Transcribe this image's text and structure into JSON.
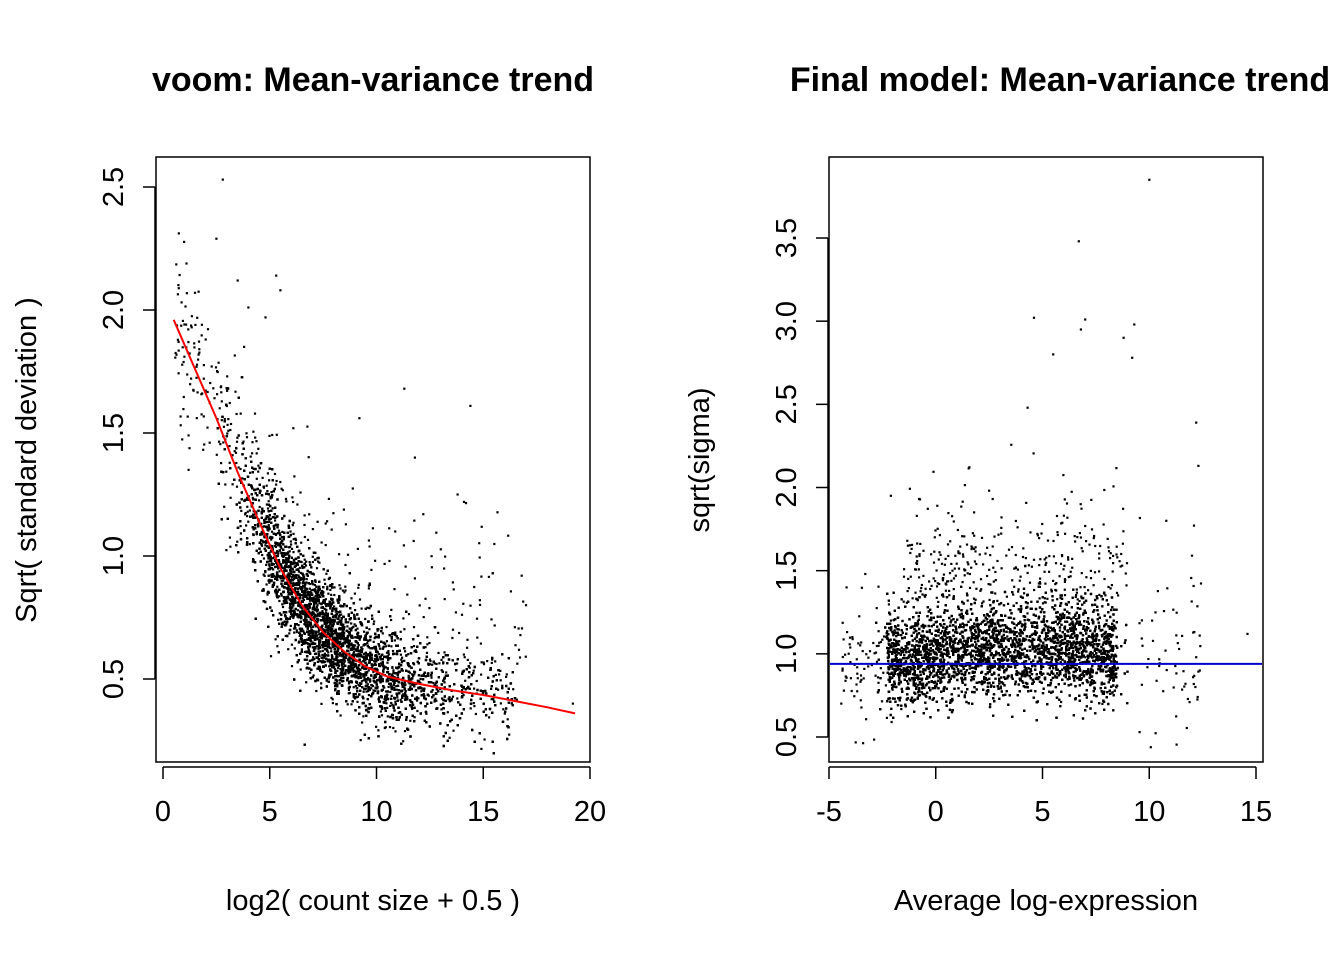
{
  "chart_data": [
    {
      "type": "scatter",
      "title": "voom: Mean-variance trend",
      "xlabel": "log2( count size + 0.5 )",
      "ylabel": "Sqrt( standard deviation )",
      "xlim": [
        0,
        20
      ],
      "ylim": [
        0.25,
        2.6
      ],
      "xticks": [
        "0",
        "5",
        "10",
        "15",
        "20"
      ],
      "yticks": [
        "0.5",
        "1.0",
        "1.5",
        "2.0",
        "2.5"
      ],
      "grid": false,
      "point_color": "#000000",
      "trend_color": "#ff0000",
      "trend_line": {
        "x": [
          0.5,
          1.5,
          2.5,
          3.5,
          4.5,
          5.5,
          6.5,
          7.5,
          8.5,
          9.5,
          10.5,
          12,
          13.5,
          15,
          16.5,
          18,
          19.3
        ],
        "y": [
          1.96,
          1.76,
          1.56,
          1.34,
          1.14,
          0.95,
          0.8,
          0.69,
          0.61,
          0.55,
          0.51,
          0.48,
          0.455,
          0.435,
          0.41,
          0.385,
          0.36
        ]
      },
      "outliers": {
        "x": [
          2.8,
          2.5,
          3.5,
          5.3,
          5.5,
          4.8,
          1.5,
          1.0,
          2.0,
          11.3,
          14.4,
          13.8,
          14.1,
          11.8,
          17.0,
          16.8,
          19.2,
          1.2,
          9.2,
          4.0,
          3.8
        ],
        "y": [
          2.53,
          2.29,
          2.12,
          2.14,
          2.08,
          1.97,
          2.07,
          1.81,
          1.88,
          1.68,
          1.61,
          1.25,
          1.22,
          1.4,
          0.8,
          0.92,
          0.4,
          1.35,
          1.56,
          2.01,
          1.85
        ]
      }
    },
    {
      "type": "scatter",
      "title": "Final model: Mean-variance trend",
      "xlabel": "Average log-expression",
      "ylabel": "sqrt(sigma)",
      "xlim": [
        -5,
        15
      ],
      "ylim": [
        0.35,
        3.95
      ],
      "xticks": [
        "-5",
        "0",
        "5",
        "10",
        "15"
      ],
      "yticks": [
        "0.5",
        "1.0",
        "1.5",
        "2.0",
        "2.5",
        "3.0",
        "3.5"
      ],
      "grid": false,
      "point_color": "#000000",
      "hline_color": "#0000cc",
      "hline_y": 0.94,
      "outliers": {
        "x": [
          10.0,
          6.7,
          6.8,
          7.0,
          9.3,
          8.8,
          9.2,
          4.6,
          5.5,
          4.3,
          12.2,
          12.3,
          14.6,
          12.0,
          11.7,
          -3.3,
          -4.0,
          -2.1,
          10.8,
          12.2
        ],
        "y": [
          3.85,
          3.48,
          2.95,
          3.01,
          2.98,
          2.9,
          2.78,
          3.02,
          2.8,
          2.48,
          2.39,
          2.13,
          1.12,
          1.59,
          0.82,
          1.48,
          0.95,
          1.95,
          1.8,
          0.98
        ]
      }
    }
  ]
}
